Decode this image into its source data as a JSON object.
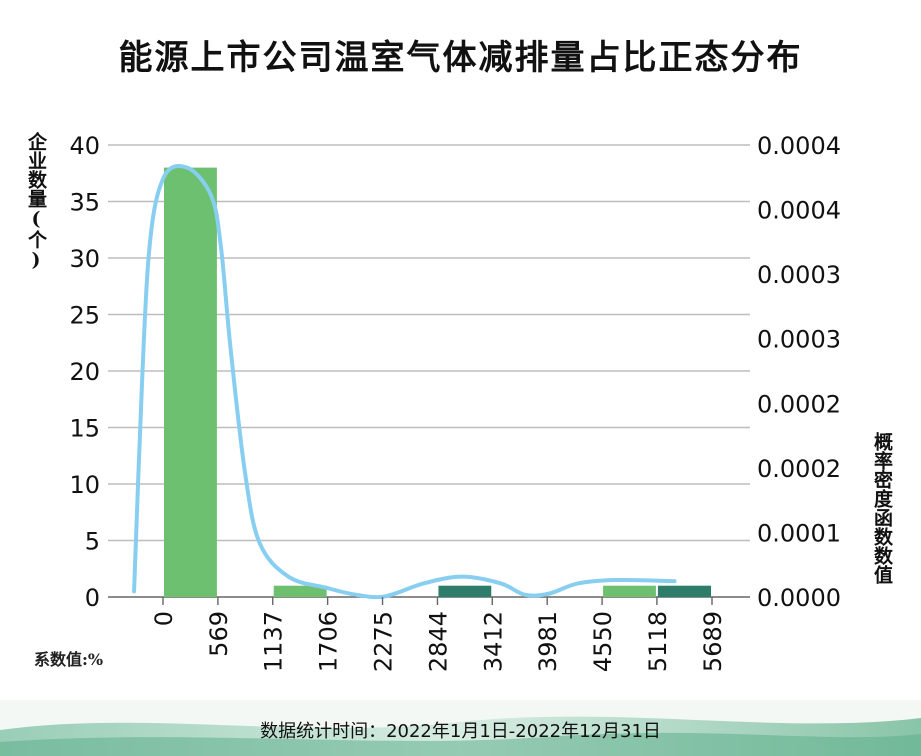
{
  "chart_data": {
    "type": "bar",
    "title": "能源上市公司温室气体减排量占比正态分布",
    "ylabel": "企业数量(个)",
    "y2label": "概率密度函数数值",
    "xlabel": "系数值:%",
    "x_ticks": [
      "0",
      "569",
      "1137",
      "1706",
      "2275",
      "2844",
      "3412",
      "3981",
      "4550",
      "5118",
      "5689"
    ],
    "ylim": [
      0,
      40
    ],
    "y_ticks": [
      0,
      5,
      10,
      15,
      20,
      25,
      30,
      35,
      40
    ],
    "y2_ticks": [
      "0.0000",
      "0.0001",
      "0.0002",
      "0.0002",
      "0.0003",
      "0.0003",
      "0.0004",
      "0.0004"
    ],
    "y2lim": [
      0,
      0.0004
    ],
    "bins": [
      {
        "from": 0,
        "to": 569,
        "value": 38,
        "color": "#6cc070"
      },
      {
        "from": 1137,
        "to": 1706,
        "value": 1,
        "color": "#6cc070"
      },
      {
        "from": 2844,
        "to": 3412,
        "value": 1,
        "color": "#2e7d6b"
      },
      {
        "from": 4550,
        "to": 5118,
        "value": 1,
        "color": "#6cc070"
      },
      {
        "from": 5118,
        "to": 5689,
        "value": 1,
        "color": "#2e7d6b"
      }
    ],
    "density_curve": {
      "color": "#87cef0",
      "points": [
        [
          -300,
          5e-06
        ],
        [
          -250,
          0.00012
        ],
        [
          -150,
          0.0003
        ],
        [
          0,
          0.00037
        ],
        [
          250,
          0.00038
        ],
        [
          500,
          0.000355
        ],
        [
          600,
          0.00031
        ],
        [
          700,
          0.00022
        ],
        [
          850,
          0.00011
        ],
        [
          1000,
          4.8e-05
        ],
        [
          1300,
          1.8e-05
        ],
        [
          1700,
          8e-06
        ],
        [
          2000,
          2e-06
        ],
        [
          2300,
          5e-07
        ],
        [
          2700,
          1.2e-05
        ],
        [
          3100,
          1.8e-05
        ],
        [
          3500,
          1.2e-05
        ],
        [
          3750,
          2e-06
        ],
        [
          4000,
          3e-06
        ],
        [
          4300,
          1.2e-05
        ],
        [
          4700,
          1.5e-05
        ],
        [
          5300,
          1.4e-05
        ]
      ]
    },
    "grid": true,
    "legend": "none"
  },
  "footer": {
    "text": "数据统计时间：2022年1月1日-2022年12月31日"
  }
}
